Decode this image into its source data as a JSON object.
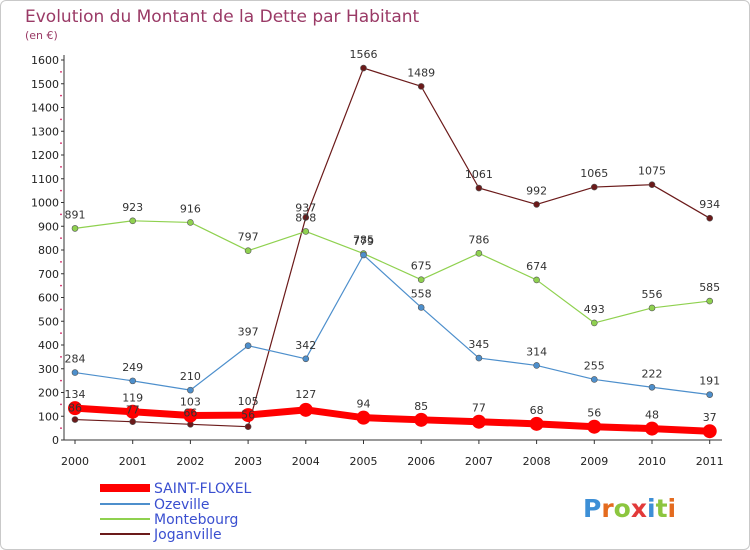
{
  "chart_data": {
    "type": "line",
    "title": "Evolution du Montant de la Dette par Habitant",
    "subtitle": "(en €)",
    "x": [
      "2000",
      "2001",
      "2002",
      "2003",
      "2004",
      "2005",
      "2006",
      "2007",
      "2008",
      "2009",
      "2010",
      "2011"
    ],
    "ylim": [
      0,
      1600
    ],
    "yticks": [
      0,
      100,
      200,
      300,
      400,
      500,
      600,
      700,
      800,
      900,
      1000,
      1100,
      1200,
      1300,
      1400,
      1500,
      1600
    ],
    "grid": false,
    "legend": "bottom-left",
    "series": [
      {
        "name": "SAINT-FLOXEL",
        "color": "#ff0000",
        "values": [
          134,
          119,
          103,
          105,
          127,
          94,
          85,
          77,
          68,
          56,
          48,
          37
        ],
        "labels": [
          "134",
          "119",
          "103",
          "105",
          "127",
          "94",
          "85",
          "77",
          "68",
          "56",
          "48",
          "37"
        ]
      },
      {
        "name": "Ozeville",
        "color": "#4d8fcc",
        "values": [
          284,
          249,
          210,
          397,
          342,
          779,
          558,
          345,
          314,
          255,
          222,
          191
        ],
        "labels": [
          "284",
          "249",
          "210",
          "397",
          "342",
          "779",
          "558",
          "345",
          "314",
          "255",
          "222",
          "191"
        ]
      },
      {
        "name": "Montebourg",
        "color": "#8fd14f",
        "values": [
          891,
          923,
          916,
          797,
          878,
          785,
          675,
          786,
          674,
          493,
          556,
          585
        ],
        "labels": [
          "891",
          "923",
          "916",
          "797",
          "878",
          "785",
          "675",
          "786",
          "674",
          "493",
          "556",
          "585"
        ]
      },
      {
        "name": "Joganville",
        "color": "#6b1a1a",
        "values": [
          86,
          77,
          66,
          56,
          937,
          1566,
          1489,
          1061,
          992,
          1065,
          1075,
          934
        ],
        "labels": [
          "86",
          "77",
          "66",
          "56",
          "937",
          "1566",
          "1489",
          "1061",
          "992",
          "1065",
          "1075",
          "934"
        ]
      }
    ]
  },
  "logo": {
    "letters": [
      "P",
      "r",
      "o",
      "x",
      "i",
      "t",
      "i"
    ],
    "colors": [
      "#3d8fd6",
      "#e46b1f",
      "#8cc63f",
      "#e23a3a",
      "#3d8fd6",
      "#8cc63f",
      "#e46b1f"
    ]
  }
}
